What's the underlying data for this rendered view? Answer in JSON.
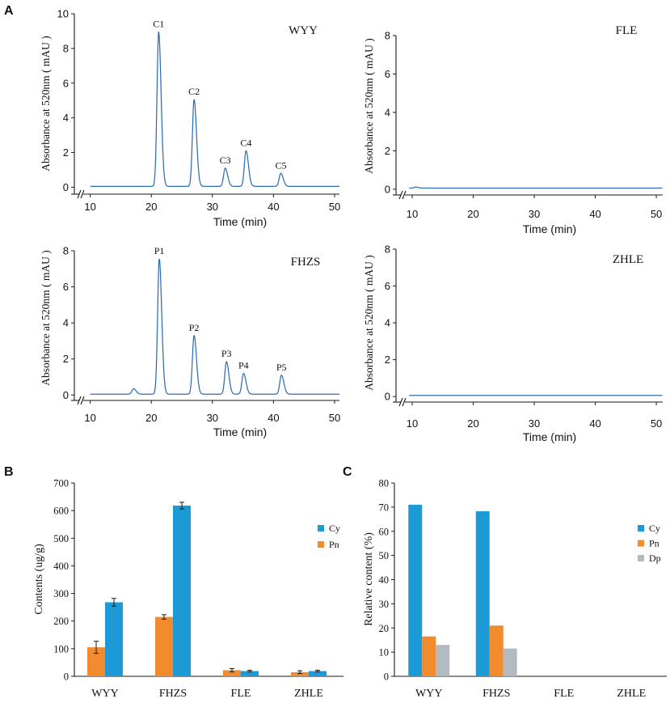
{
  "panel_labels": {
    "a": "A",
    "b": "B",
    "c": "C"
  },
  "colors": {
    "trace": "#2d6db5",
    "axis": "#1a1a1a",
    "cy": "#1b9ad6",
    "pn": "#f28a2e",
    "dp": "#b3bbc2"
  },
  "chart_data": [
    {
      "type": "line",
      "sample": "WYY",
      "xlabel": "Time (min)",
      "ylabel": "Absorbance at 520nm ( mAU )",
      "xlim": [
        7.4,
        50.8
      ],
      "ylim": [
        -0.4,
        10
      ],
      "xticks": [
        10,
        20,
        30,
        40,
        50
      ],
      "yticks": [
        0,
        2,
        4,
        6,
        8,
        10
      ],
      "x_axis_break": true,
      "trace_range": [
        10,
        50.8
      ],
      "baseline": 0.05,
      "peaks": [
        {
          "label": "C1",
          "time": 21.2,
          "height": 8.9
        },
        {
          "label": "C2",
          "time": 27.0,
          "height": 5.0
        },
        {
          "label": "C3",
          "time": 32.1,
          "height": 1.05
        },
        {
          "label": "C4",
          "time": 35.5,
          "height": 2.05
        },
        {
          "label": "C5",
          "time": 41.2,
          "height": 0.75
        }
      ],
      "minor_peaks": []
    },
    {
      "type": "line",
      "sample": "FLE",
      "xlabel": "Time (min)",
      "ylabel": "Absorbance at 520nm ( mAU )",
      "xlim": [
        7.35,
        51.05
      ],
      "ylim": [
        -0.3,
        8
      ],
      "xticks": [
        10,
        20,
        30,
        40,
        50
      ],
      "yticks": [
        0,
        2,
        4,
        6,
        8
      ],
      "x_axis_break": true,
      "trace_range": [
        9.5,
        51.0
      ],
      "baseline": 0.06,
      "peaks": [],
      "minor_peaks": [
        {
          "time": 10.6,
          "height": 0.05
        }
      ]
    },
    {
      "type": "line",
      "sample": "FHZS",
      "xlabel": "Time (min)",
      "ylabel": "Absorbance at 520nm ( mAU )",
      "xlim": [
        7.4,
        50.8
      ],
      "ylim": [
        -0.3,
        8
      ],
      "xticks": [
        10,
        20,
        30,
        40,
        50
      ],
      "yticks": [
        0,
        2,
        4,
        6,
        8
      ],
      "x_axis_break": true,
      "trace_range": [
        10,
        50.8
      ],
      "baseline": 0.05,
      "peaks": [
        {
          "label": "P1",
          "time": 21.3,
          "height": 7.5
        },
        {
          "label": "P2",
          "time": 27.0,
          "height": 3.25
        },
        {
          "label": "P3",
          "time": 32.3,
          "height": 1.8
        },
        {
          "label": "P4",
          "time": 35.1,
          "height": 1.15
        },
        {
          "label": "P5",
          "time": 41.3,
          "height": 1.05
        }
      ],
      "minor_peaks": [
        {
          "time": 17.1,
          "height": 0.3
        }
      ]
    },
    {
      "type": "line",
      "sample": "ZHLE",
      "xlabel": "Time (min)",
      "ylabel": "Absorbance at 520nm ( mAU )",
      "xlim": [
        7.35,
        51.05
      ],
      "ylim": [
        -0.3,
        8
      ],
      "xticks": [
        10,
        20,
        30,
        40,
        50
      ],
      "yticks": [
        0,
        2,
        4,
        6,
        8
      ],
      "x_axis_break": true,
      "trace_range": [
        9.5,
        51.0
      ],
      "baseline": 0.06,
      "peaks": [],
      "minor_peaks": []
    },
    {
      "type": "bar",
      "ylabel": "Contents (ug/g)",
      "ylim": [
        0,
        700
      ],
      "yticks": [
        0,
        100,
        200,
        300,
        400,
        500,
        600,
        700
      ],
      "categories": [
        "WYY",
        "FHZS",
        "FLE",
        "ZHLE"
      ],
      "series": [
        {
          "name": "Pn",
          "values": [
            105,
            215,
            22,
            15
          ],
          "errors": [
            22,
            8,
            6,
            5
          ],
          "color": "#f28a2e"
        },
        {
          "name": "Cy",
          "values": [
            268,
            618,
            19,
            19
          ],
          "errors": [
            14,
            12,
            3,
            3
          ],
          "color": "#1b9ad6"
        }
      ],
      "legend_order": [
        1,
        0
      ]
    },
    {
      "type": "bar",
      "ylabel": "Relative content (%)",
      "ylim": [
        0,
        80
      ],
      "yticks": [
        0,
        10,
        20,
        30,
        40,
        50,
        60,
        70,
        80
      ],
      "categories": [
        "WYY",
        "FHZS",
        "FLE",
        "ZHLE"
      ],
      "series": [
        {
          "name": "Cy",
          "values": [
            71,
            68.3,
            null,
            null
          ],
          "color": "#1b9ad6"
        },
        {
          "name": "Pn",
          "values": [
            16.5,
            21,
            null,
            null
          ],
          "color": "#f28a2e"
        },
        {
          "name": "Dp",
          "values": [
            13,
            11.5,
            null,
            null
          ],
          "color": "#b3bbc2"
        }
      ],
      "legend_order": [
        0,
        1,
        2
      ]
    }
  ]
}
